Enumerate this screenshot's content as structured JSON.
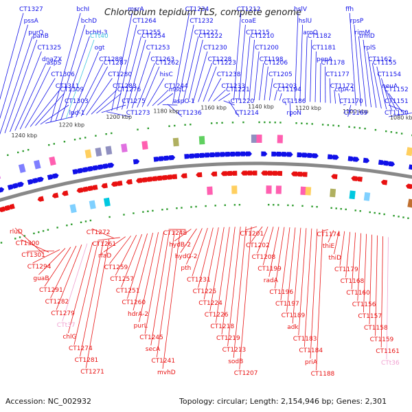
{
  "title": "Chlorobium tepidum TLS, complete genome",
  "footer": {
    "accession": "Accession: NC_002932",
    "summary": "Topology: circular; Length: 2,154,946 bp; Genes: 2,301"
  },
  "colors": {
    "forward": "#1010e8",
    "reverse": "#e81010",
    "rna": "#3cc4e0",
    "pseudo": "#f0a0d0",
    "backbone": "#888888"
  },
  "kbp_ticks": [
    "1240 kbp",
    "1220 kbp",
    "1200 kbp",
    "1180 kbp",
    "1160 kbp",
    "1140 kbp",
    "1120 kbp",
    "1100 kbp",
    "1080 kbp"
  ],
  "top_labels": [
    "CT1327",
    "pssA",
    "purQ",
    "panB",
    "CT1325",
    "dnaZX",
    "aspS",
    "CT1306",
    "CT1311",
    "CT1309",
    "CT1303",
    "lpd-1",
    "bchI",
    "bchD",
    "bchH-3",
    "CTt40",
    "ogt",
    "CT1288",
    "CT1287",
    "CT1280",
    "CT1283",
    "CT1276",
    "CT1275",
    "CT1273",
    "msrA",
    "CT1264",
    "CT1255",
    "CT1254",
    "CT1253",
    "CT1263",
    "CT1262",
    "hisC",
    "CT1244",
    "mscL",
    "aspC-1",
    "CT1236",
    "CT1234",
    "CT1232",
    "CT1227",
    "CT1222",
    "CT1230",
    "CT1228",
    "CT1223",
    "CT1238",
    "CT1233",
    "CT1221",
    "CT1220",
    "CT1214",
    "CT1212",
    "coaE",
    "CT1215",
    "CT1210",
    "CT1200",
    "CT1198",
    "CT1206",
    "CT1205",
    "CT1203",
    "CT1194",
    "CT1186",
    "rpoN",
    "hslV",
    "hslU",
    "aroQ",
    "CT1182",
    "CT1181",
    "pepA",
    "CT1178",
    "CT1177",
    "CT1172",
    "ctpA-1",
    "CT1170",
    "CT1169",
    "ffh",
    "rpsP",
    "rimM",
    "trmD",
    "rplS",
    "CT1162",
    "CT1155",
    "CT1154",
    "neuA",
    "CT1152",
    "CT1151",
    "CT1150"
  ],
  "bottom_labels": [
    "rluD",
    "CT1300",
    "CT1301",
    "CT1294",
    "guaB",
    "CT1291",
    "CT1282",
    "CT1279",
    "CTt37",
    "chlG",
    "CT1274",
    "CT1281",
    "CT1271",
    "CT1272",
    "CT1261",
    "rfaD",
    "CT1259",
    "CT1257",
    "CT1251",
    "CT1260",
    "hdrA-2",
    "purL",
    "CT1245",
    "secA",
    "CT1241",
    "mvhD",
    "CT1248",
    "hydB-2",
    "hydG-2",
    "pth",
    "CT1231",
    "CT1225",
    "CT1224",
    "CT1226",
    "CT1218",
    "CT1219",
    "CT1213",
    "sodB",
    "CT1207",
    "CT1201",
    "CT1202",
    "CT1208",
    "CT1199",
    "radA",
    "CT1196",
    "CT1197",
    "CT1189",
    "adk",
    "CT1183",
    "CT1184",
    "priA",
    "CT1188",
    "CT1174",
    "thiE",
    "thiD",
    "CT1179",
    "CT1168",
    "CT1160",
    "CT1156",
    "CT1157",
    "CT1158",
    "CT1159",
    "CT1161",
    "CTt36"
  ]
}
